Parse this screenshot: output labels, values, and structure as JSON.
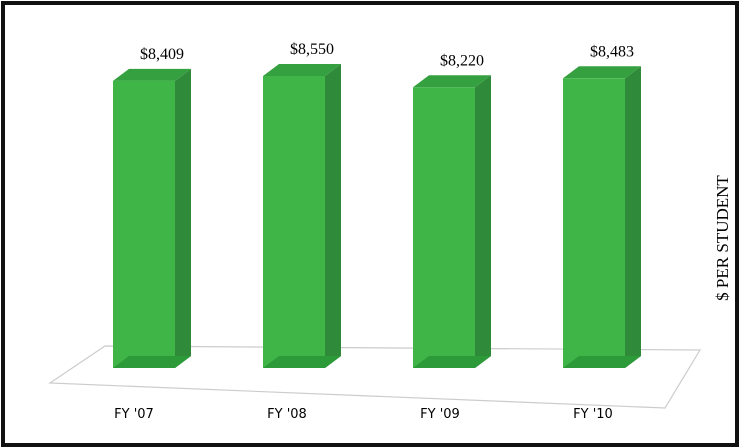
{
  "chart_data": {
    "type": "bar3d",
    "categories": [
      "FY '07",
      "FY '08",
      "FY '09",
      "FY '10"
    ],
    "values": [
      8409,
      8550,
      8220,
      8483
    ],
    "value_labels": [
      "$8,409",
      "$8,550",
      "$8,220",
      "$8,483"
    ],
    "y_axis_label": "$ PER STUDENT",
    "color": "#3fb548"
  }
}
